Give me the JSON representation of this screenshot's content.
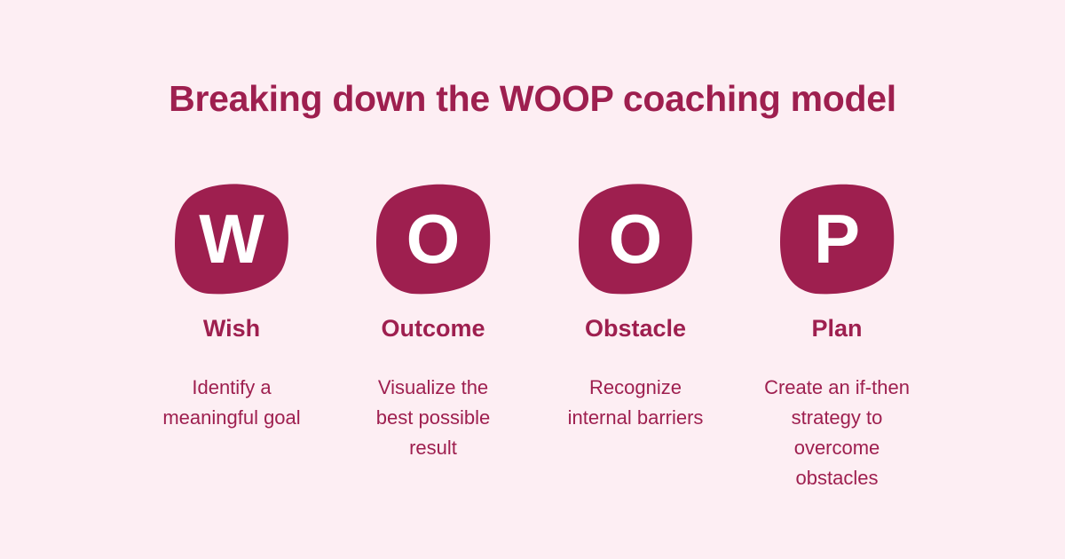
{
  "title": "Breaking down the WOOP coaching model",
  "colors": {
    "background": "#fdeef3",
    "accent": "#9e1f4f",
    "letter": "#ffffff"
  },
  "steps": [
    {
      "letter": "W",
      "label": "Wish",
      "description": "Identify a meaningful goal"
    },
    {
      "letter": "O",
      "label": "Outcome",
      "description": "Visualize the best possible result"
    },
    {
      "letter": "O",
      "label": "Obstacle",
      "description": "Recognize internal barriers"
    },
    {
      "letter": "P",
      "label": "Plan",
      "description": "Create an if-then strategy to overcome obstacles"
    }
  ]
}
